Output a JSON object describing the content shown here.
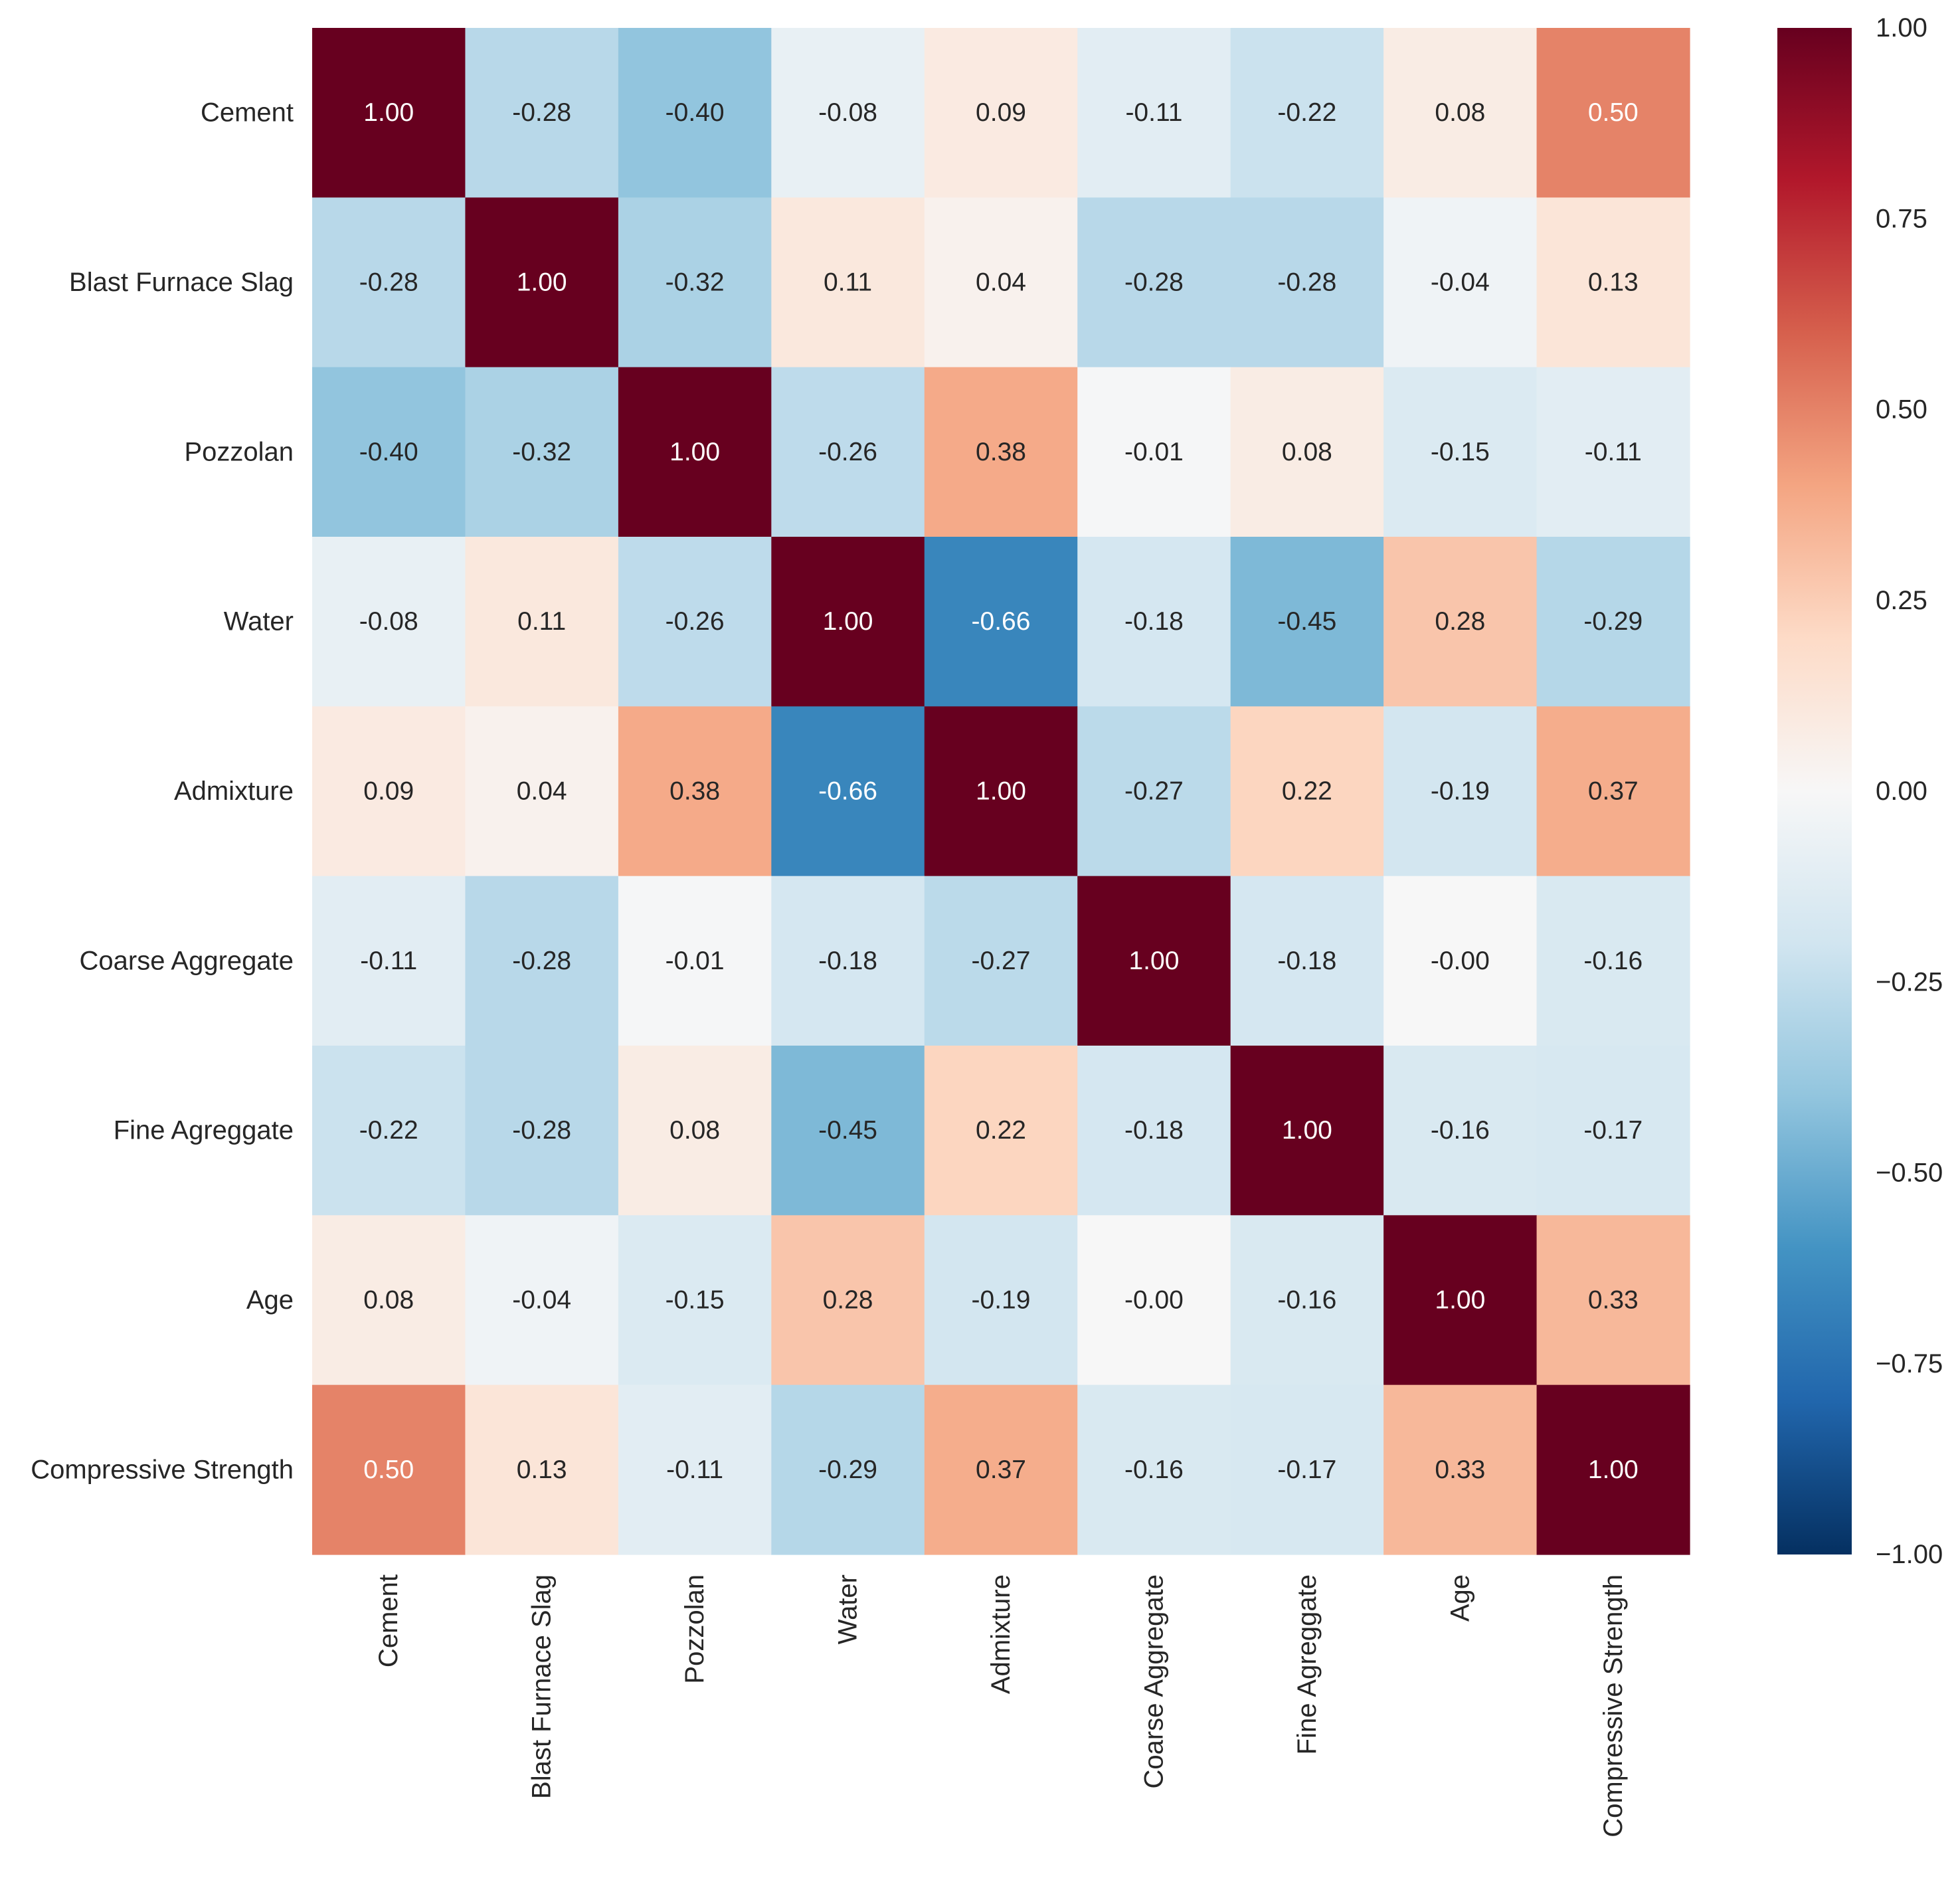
{
  "chart_data": {
    "type": "heatmap",
    "title": "",
    "xlabel": "",
    "ylabel": "",
    "rows": [
      "Cement",
      "Blast Furnace Slag",
      "Pozzolan",
      "Water",
      "Admixture",
      "Coarse Aggregate",
      "Fine Agreggate",
      "Age",
      "Compressive Strength"
    ],
    "columns": [
      "Cement",
      "Blast Furnace Slag",
      "Pozzolan",
      "Water",
      "Admixture",
      "Coarse Aggregate",
      "Fine Agreggate",
      "Age",
      "Compressive Strength"
    ],
    "values": [
      [
        1.0,
        -0.28,
        -0.4,
        -0.08,
        0.09,
        -0.11,
        -0.22,
        0.08,
        0.5
      ],
      [
        -0.28,
        1.0,
        -0.32,
        0.11,
        0.04,
        -0.28,
        -0.28,
        -0.04,
        0.13
      ],
      [
        -0.4,
        -0.32,
        1.0,
        -0.26,
        0.38,
        -0.01,
        0.08,
        -0.15,
        -0.11
      ],
      [
        -0.08,
        0.11,
        -0.26,
        1.0,
        -0.66,
        -0.18,
        -0.45,
        0.28,
        -0.29
      ],
      [
        0.09,
        0.04,
        0.38,
        -0.66,
        1.0,
        -0.27,
        0.22,
        -0.19,
        0.37
      ],
      [
        -0.11,
        -0.28,
        -0.01,
        -0.18,
        -0.27,
        1.0,
        -0.18,
        -0.0,
        -0.16
      ],
      [
        -0.22,
        -0.28,
        0.08,
        -0.45,
        0.22,
        -0.18,
        1.0,
        -0.16,
        -0.17
      ],
      [
        0.08,
        -0.04,
        -0.15,
        0.28,
        -0.19,
        -0.0,
        -0.16,
        1.0,
        0.33
      ],
      [
        0.5,
        0.13,
        -0.11,
        -0.29,
        0.37,
        -0.16,
        -0.17,
        0.33,
        1.0
      ]
    ],
    "value_format": "fixed-2",
    "colormap": "RdBu_r",
    "vmin": -1.0,
    "vmax": 1.0,
    "colorbar": {
      "position": "right",
      "ticks": [
        1.0,
        0.75,
        0.5,
        0.25,
        0.0,
        -0.25,
        -0.5,
        -0.75,
        -1.0
      ],
      "tick_labels": [
        "1.00",
        "0.75",
        "0.50",
        "0.25",
        "0.00",
        "−0.25",
        "−0.50",
        "−0.75",
        "−1.00"
      ]
    },
    "grid": false
  }
}
